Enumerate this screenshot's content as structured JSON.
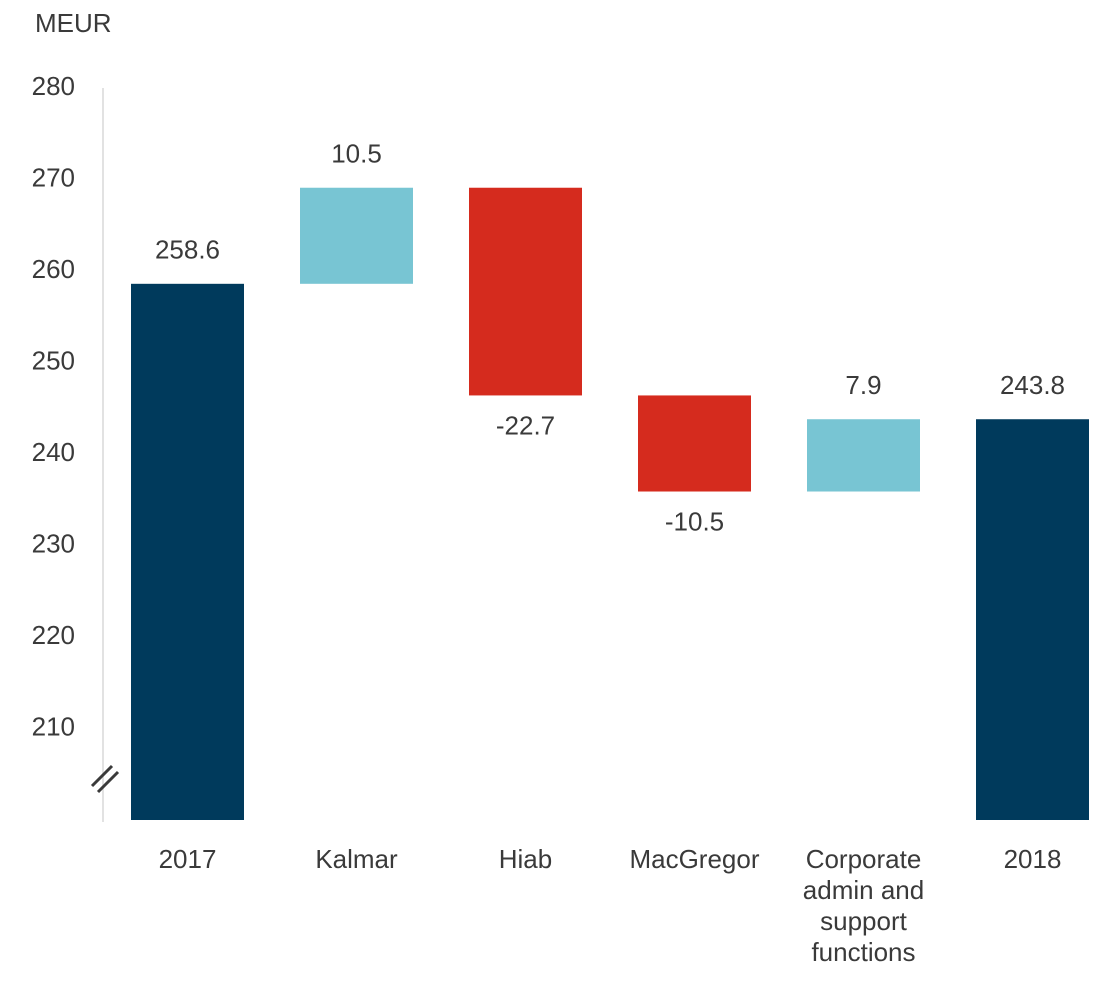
{
  "chart_data": {
    "type": "waterfall",
    "y_label": "MEUR",
    "categories": [
      "2017",
      "Kalmar",
      "Hiab",
      "MacGregor",
      "Corporate admin and support functions",
      "2018"
    ],
    "values": [
      258.6,
      10.5,
      -22.7,
      -10.5,
      7.9,
      243.8
    ],
    "totals": [
      0,
      5
    ],
    "colors": [
      "#003a5c",
      "#78c5d3",
      "#d52b1e",
      "#d52b1e",
      "#78c5d3",
      "#003a5c"
    ],
    "ylim": [
      200,
      280
    ],
    "yticks": [
      210,
      220,
      230,
      240,
      250,
      260,
      270,
      280
    ],
    "grid": false
  }
}
